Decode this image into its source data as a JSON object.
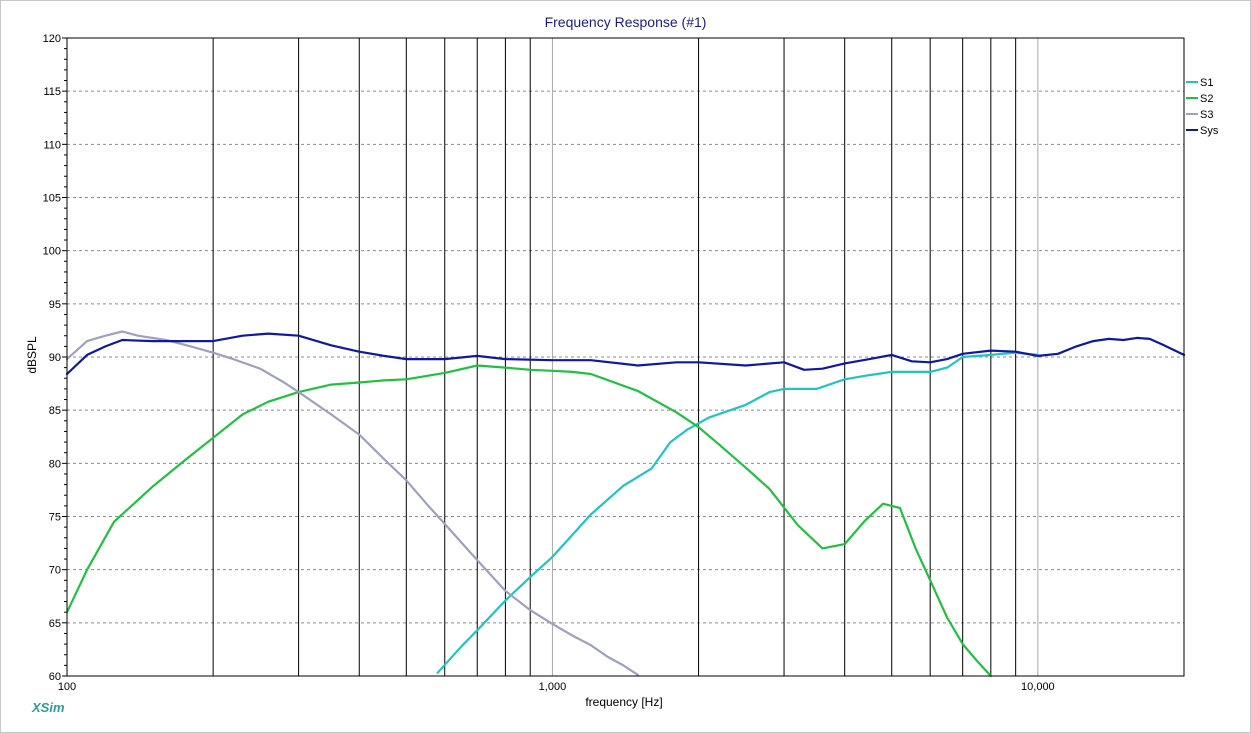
{
  "app": {
    "logo_text": "XSim"
  },
  "chart_data": {
    "type": "line",
    "title": "Frequency Response (#1)",
    "xlabel": "frequency [Hz]",
    "ylabel": "dBSPL",
    "xscale": "log",
    "xlim": [
      100,
      20000
    ],
    "ylim": [
      60,
      120
    ],
    "yticks": [
      60,
      65,
      70,
      75,
      80,
      85,
      90,
      95,
      100,
      105,
      110,
      115,
      120
    ],
    "ytick_labels": [
      "60",
      "65",
      "70",
      "75",
      "80",
      "85",
      "90",
      "95",
      "100",
      "105",
      "110",
      "115",
      "120"
    ],
    "xticks": [
      100,
      1000,
      10000
    ],
    "xtick_labels": [
      "100",
      "1,000",
      "10,000"
    ],
    "grid": true,
    "legend_position": "right",
    "series": [
      {
        "name": "S1",
        "color": "#20c4c4",
        "x": [
          580,
          650,
          700,
          800,
          900,
          1000,
          1200,
          1400,
          1600,
          1750,
          1900,
          2100,
          2500,
          2800,
          3000,
          3500,
          4000,
          4500,
          5000,
          6000,
          6500,
          7000,
          8000,
          9000,
          10000
        ],
        "y": [
          60.3,
          62.8,
          64.3,
          67.1,
          69.3,
          71.2,
          75.2,
          77.9,
          79.5,
          82.0,
          83.2,
          84.3,
          85.5,
          86.7,
          87.0,
          87.0,
          87.9,
          88.3,
          88.6,
          88.6,
          89.0,
          90.0,
          90.2,
          90.4,
          90.2
        ]
      },
      {
        "name": "S2",
        "color": "#22c040",
        "x": [
          100,
          110,
          125,
          150,
          175,
          200,
          230,
          260,
          300,
          350,
          400,
          450,
          500,
          600,
          700,
          800,
          900,
          1000,
          1100,
          1200,
          1500,
          1800,
          2000,
          2200,
          2500,
          2800,
          3200,
          3600,
          4000,
          4400,
          4800,
          5200,
          5600,
          6000,
          6500,
          7000,
          7500,
          8000
        ],
        "y": [
          66.0,
          70.0,
          74.5,
          77.8,
          80.3,
          82.4,
          84.6,
          85.8,
          86.7,
          87.4,
          87.6,
          87.8,
          87.9,
          88.5,
          89.2,
          89.0,
          88.8,
          88.7,
          88.6,
          88.4,
          86.8,
          84.8,
          83.4,
          81.8,
          79.6,
          77.6,
          74.2,
          72.0,
          72.4,
          74.6,
          76.2,
          75.8,
          72.0,
          69.0,
          65.5,
          63.0,
          61.4,
          60.0
        ]
      },
      {
        "name": "S3",
        "color": "#a0a0bc",
        "x": [
          100,
          110,
          120,
          130,
          140,
          160,
          180,
          200,
          220,
          250,
          280,
          300,
          350,
          400,
          450,
          500,
          550,
          600,
          700,
          800,
          900,
          1000,
          1100,
          1200,
          1300,
          1400,
          1500
        ],
        "y": [
          89.8,
          91.5,
          92.0,
          92.4,
          92.0,
          91.6,
          91.0,
          90.4,
          89.8,
          88.9,
          87.6,
          86.7,
          84.6,
          82.7,
          80.4,
          78.4,
          76.2,
          74.3,
          70.9,
          68.0,
          66.2,
          64.9,
          63.8,
          62.9,
          61.8,
          61.0,
          60.1
        ]
      },
      {
        "name": "Sys",
        "color": "#1018a0",
        "x": [
          100,
          110,
          120,
          130,
          150,
          180,
          200,
          230,
          260,
          300,
          350,
          400,
          450,
          500,
          600,
          700,
          800,
          1000,
          1200,
          1500,
          1800,
          2000,
          2500,
          3000,
          3300,
          3600,
          4000,
          4500,
          5000,
          5500,
          6000,
          6500,
          7000,
          8000,
          9000,
          10000,
          11000,
          12000,
          13000,
          14000,
          15000,
          16000,
          17000,
          18000,
          20000
        ],
        "y": [
          88.4,
          90.2,
          91.0,
          91.6,
          91.5,
          91.5,
          91.5,
          92.0,
          92.2,
          92.0,
          91.1,
          90.5,
          90.1,
          89.8,
          89.8,
          90.1,
          89.8,
          89.7,
          89.7,
          89.2,
          89.5,
          89.5,
          89.2,
          89.5,
          88.8,
          88.9,
          89.4,
          89.8,
          90.2,
          89.6,
          89.5,
          89.8,
          90.3,
          90.6,
          90.5,
          90.1,
          90.3,
          91.0,
          91.5,
          91.7,
          91.6,
          91.8,
          91.7,
          91.2,
          90.2
        ]
      }
    ]
  }
}
